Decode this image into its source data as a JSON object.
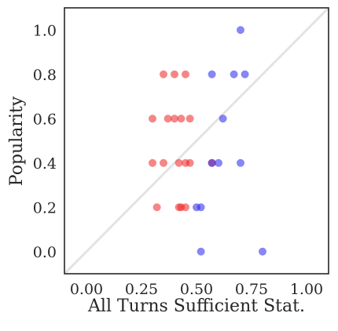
{
  "chart_data": {
    "type": "scatter",
    "title": "",
    "xlabel": "All Turns Sufficient Stat.",
    "ylabel": "Popularity",
    "xlim": [
      -0.1,
      1.1
    ],
    "ylim": [
      -0.1,
      1.1
    ],
    "xticks": [
      0.0,
      0.25,
      0.5,
      0.75,
      1.0
    ],
    "xtick_labels": [
      "0.00",
      "0.25",
      "0.50",
      "0.75",
      "1.00"
    ],
    "yticks": [
      0.0,
      0.2,
      0.4,
      0.6,
      0.8,
      1.0
    ],
    "ytick_labels": [
      "0.0",
      "0.2",
      "0.4",
      "0.6",
      "0.8",
      "1.0"
    ],
    "grid": false,
    "reference_line": {
      "x": [
        -0.1,
        1.1
      ],
      "y": [
        -0.1,
        1.1
      ],
      "color": "#e3e3e3"
    },
    "series": [
      {
        "color": "#ee2222",
        "points": [
          {
            "x": 0.35,
            "y": 0.8
          },
          {
            "x": 0.4,
            "y": 0.8
          },
          {
            "x": 0.45,
            "y": 0.8
          },
          {
            "x": 0.3,
            "y": 0.6
          },
          {
            "x": 0.37,
            "y": 0.6
          },
          {
            "x": 0.4,
            "y": 0.6
          },
          {
            "x": 0.43,
            "y": 0.6
          },
          {
            "x": 0.47,
            "y": 0.6
          },
          {
            "x": 0.3,
            "y": 0.4
          },
          {
            "x": 0.35,
            "y": 0.4
          },
          {
            "x": 0.42,
            "y": 0.4
          },
          {
            "x": 0.45,
            "y": 0.4
          },
          {
            "x": 0.47,
            "y": 0.4
          },
          {
            "x": 0.57,
            "y": 0.4
          },
          {
            "x": 0.32,
            "y": 0.2
          },
          {
            "x": 0.42,
            "y": 0.2
          },
          {
            "x": 0.43,
            "y": 0.2
          },
          {
            "x": 0.45,
            "y": 0.2
          }
        ]
      },
      {
        "color": "#2222ee",
        "points": [
          {
            "x": 0.7,
            "y": 1.0
          },
          {
            "x": 0.57,
            "y": 0.8
          },
          {
            "x": 0.67,
            "y": 0.8
          },
          {
            "x": 0.72,
            "y": 0.8
          },
          {
            "x": 0.62,
            "y": 0.6
          },
          {
            "x": 0.57,
            "y": 0.4
          },
          {
            "x": 0.6,
            "y": 0.4
          },
          {
            "x": 0.7,
            "y": 0.4
          },
          {
            "x": 0.5,
            "y": 0.2
          },
          {
            "x": 0.52,
            "y": 0.2
          },
          {
            "x": 0.52,
            "y": 0.0
          },
          {
            "x": 0.8,
            "y": 0.0
          }
        ]
      }
    ]
  }
}
